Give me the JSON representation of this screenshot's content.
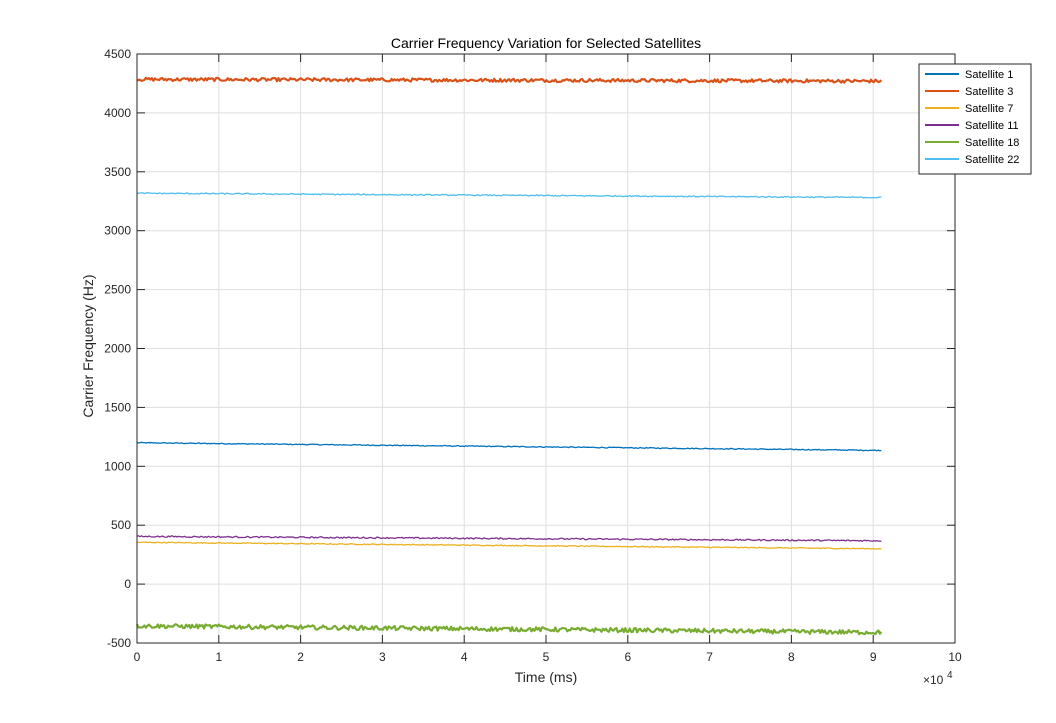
{
  "chart_data": {
    "type": "line",
    "title": "Carrier Frequency Variation for Selected Satellites",
    "xlabel": "Time (ms)",
    "ylabel": "Carrier Frequency (Hz)",
    "x_multiplier_label": "×10",
    "x_multiplier_exponent": "4",
    "xlim": [
      0,
      10
    ],
    "ylim": [
      -500,
      4500
    ],
    "x_ticks": [
      0,
      1,
      2,
      3,
      4,
      5,
      6,
      7,
      8,
      9,
      10
    ],
    "x_tick_labels": [
      "0",
      "1",
      "2",
      "3",
      "4",
      "5",
      "6",
      "7",
      "8",
      "9",
      "10"
    ],
    "y_ticks": [
      -500,
      0,
      500,
      1000,
      1500,
      2000,
      2500,
      3000,
      3500,
      4000,
      4500
    ],
    "y_tick_labels": [
      "-500",
      "0",
      "500",
      "1000",
      "1500",
      "2000",
      "2500",
      "3000",
      "3500",
      "4000",
      "4500"
    ],
    "grid": true,
    "legend_position": "top-right",
    "series": [
      {
        "name": "Satellite 1",
        "color": "#0072BD",
        "x": [
          0,
          9.1
        ],
        "y": [
          1200,
          1135
        ],
        "noise": 4
      },
      {
        "name": "Satellite 3",
        "color": "#D95319",
        "x": [
          0,
          9.1
        ],
        "y": [
          4285,
          4270
        ],
        "noise": 14
      },
      {
        "name": "Satellite 7",
        "color": "#EDB120",
        "x": [
          0,
          9.1
        ],
        "y": [
          355,
          300
        ],
        "noise": 4
      },
      {
        "name": "Satellite 11",
        "color": "#7E2F8E",
        "x": [
          0,
          9.1
        ],
        "y": [
          405,
          368
        ],
        "noise": 6
      },
      {
        "name": "Satellite 18",
        "color": "#77AC30",
        "x": [
          0,
          9.1
        ],
        "y": [
          -355,
          -410
        ],
        "noise": 18
      },
      {
        "name": "Satellite 22",
        "color": "#4DBEEE",
        "x": [
          0,
          9.1
        ],
        "y": [
          3318,
          3282
        ],
        "noise": 5
      }
    ]
  }
}
